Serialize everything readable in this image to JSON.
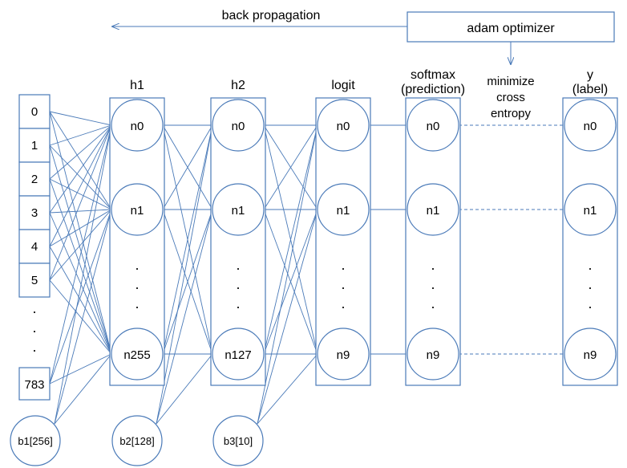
{
  "top": {
    "backprop": "back propagation",
    "optimizer": "adam optimizer",
    "minimize": [
      "minimize",
      "cross",
      "entropy"
    ]
  },
  "headers": {
    "h1": "h1",
    "h2": "h2",
    "logit": "logit",
    "softmax": [
      "softmax",
      "(prediction)"
    ],
    "y": [
      "y",
      "(label)"
    ]
  },
  "input": {
    "cells": [
      "0",
      "1",
      "2",
      "3",
      "4",
      "5"
    ],
    "last": "783",
    "dot": "."
  },
  "bias": {
    "b1": "b1[256]",
    "b2": "b2[128]",
    "b3": "b3[10]"
  },
  "nodes": {
    "h1": [
      "n0",
      "n1",
      "n255"
    ],
    "h2": [
      "n0",
      "n1",
      "n127"
    ],
    "logit": [
      "n0",
      "n1",
      "n9"
    ],
    "softmax": [
      "n0",
      "n1",
      "n9"
    ],
    "y": [
      "n0",
      "n1",
      "n9"
    ],
    "dot": "."
  }
}
